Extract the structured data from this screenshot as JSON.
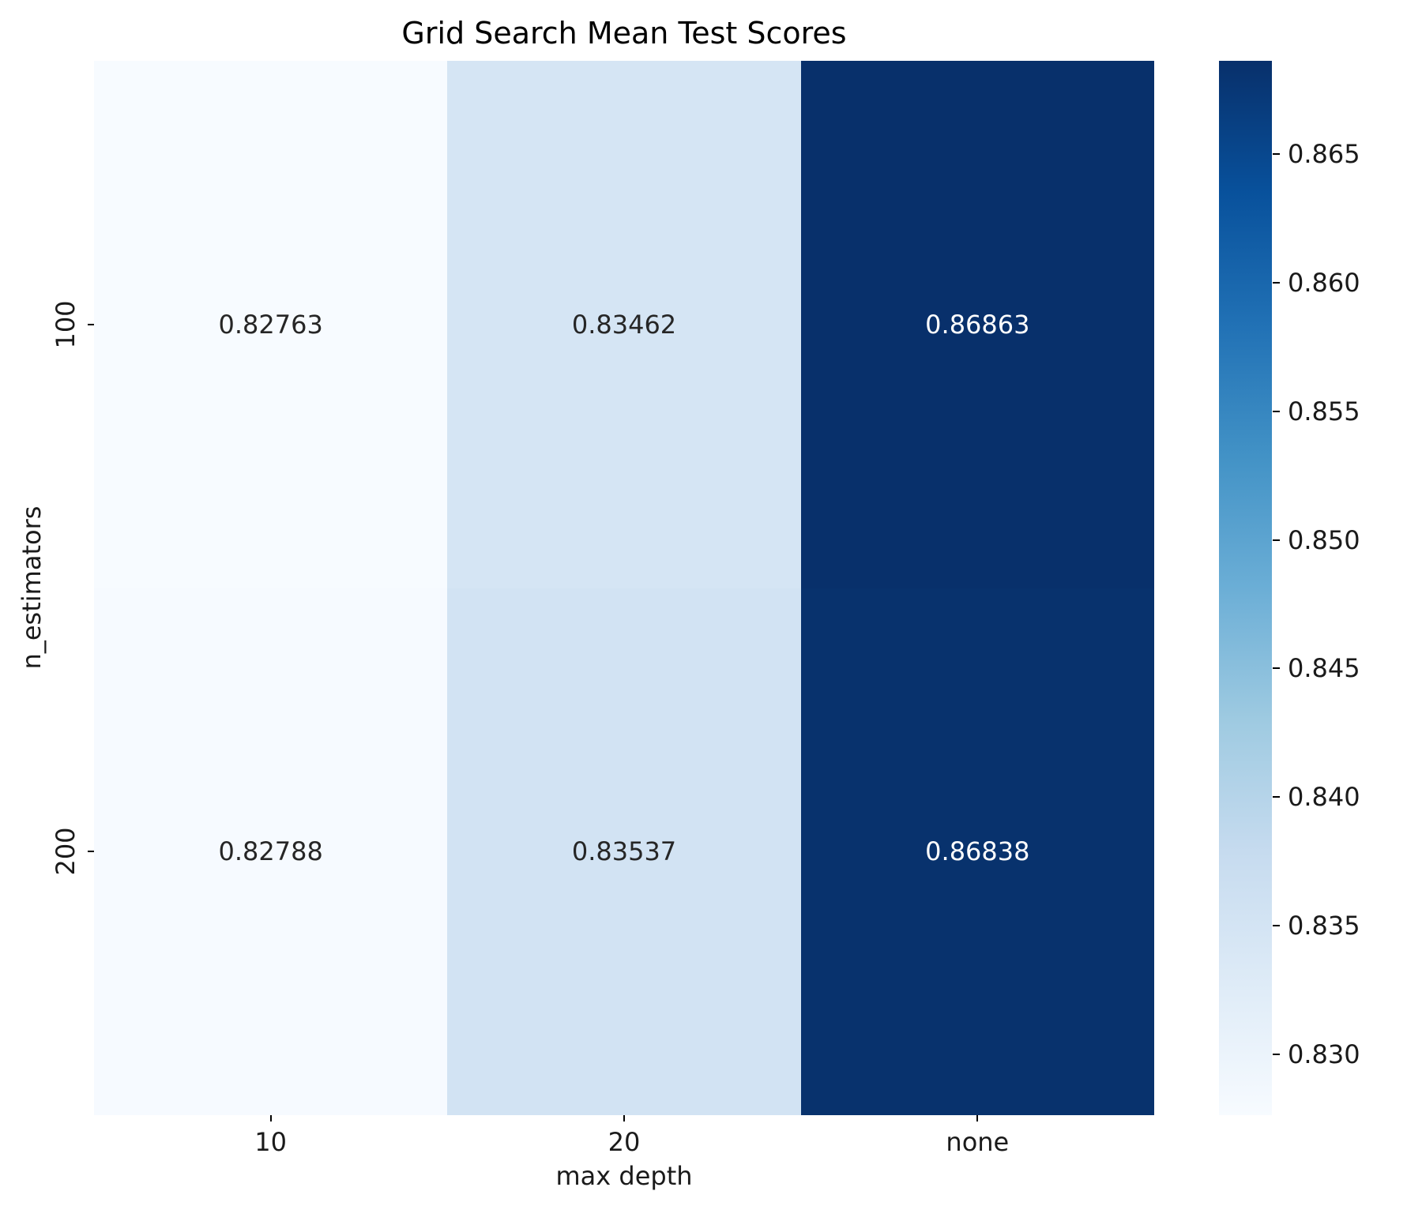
{
  "figure": {
    "title": "Grid Search Mean Test Scores",
    "xlabel": "max depth",
    "ylabel": "n_estimators"
  },
  "chart_data": {
    "type": "heatmap",
    "title": "Grid Search Mean Test Scores",
    "xlabel": "max depth",
    "ylabel": "n_estimators",
    "x_categories": [
      "10",
      "20",
      "none"
    ],
    "y_categories": [
      "100",
      "200"
    ],
    "values": [
      [
        0.82763,
        0.83462,
        0.86863
      ],
      [
        0.82788,
        0.83537,
        0.86838
      ]
    ],
    "cell_labels": [
      [
        "0.82763",
        "0.83462",
        "0.86863"
      ],
      [
        "0.82788",
        "0.83537",
        "0.86838"
      ]
    ],
    "cell_colors": [
      [
        "#f7fbff",
        "#d5e5f4",
        "#08306b"
      ],
      [
        "#f6faff",
        "#d2e3f3",
        "#08326d"
      ]
    ],
    "cell_text_colors": [
      [
        "#262626",
        "#262626",
        "#ffffff"
      ],
      [
        "#262626",
        "#262626",
        "#ffffff"
      ]
    ],
    "colormap": "Blues",
    "colormap_stops_low_to_high": [
      "#f7fbff",
      "#deebf7",
      "#c6dbef",
      "#9ecae1",
      "#6baed6",
      "#4292c6",
      "#2171b5",
      "#08519c",
      "#08306b"
    ],
    "vmin": 0.82763,
    "vmax": 0.86863,
    "colorbar_tick_labels": [
      "0.865",
      "0.860",
      "0.855",
      "0.850",
      "0.845",
      "0.840",
      "0.835",
      "0.830"
    ],
    "grid": false,
    "legend": "colorbar-right"
  }
}
